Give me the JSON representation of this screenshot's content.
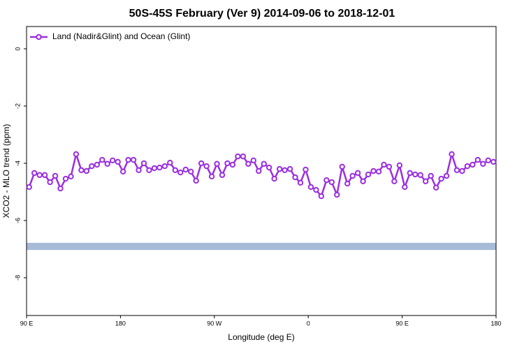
{
  "chart_data": {
    "type": "line",
    "title": "50S-45S February (Ver 9)   2014-09-06 to 2018-12-01",
    "x_label": "Longitude (deg E)",
    "y_label": "XCO2 - MLO trend (ppm)",
    "xlim": [
      90,
      540
    ],
    "xticks": [
      {
        "value": 90,
        "label": "90 E"
      },
      180,
      {
        "value": 270,
        "label": "90 W"
      },
      {
        "value": 360,
        "label": "0"
      },
      {
        "value": 450,
        "label": "90 E"
      },
      {
        "value": 540,
        "label": "180"
      }
    ],
    "ylim": [
      -9.32,
      0.78
    ],
    "yticks": [
      0,
      -2,
      -4,
      -6,
      -8
    ],
    "legend": "top-left",
    "band": {
      "values": [
        -6.78,
        -7.03
      ],
      "color": "#a7bbd8"
    },
    "x": [
      92.5,
      97.5,
      102.5,
      107.5,
      112.5,
      117.5,
      122.5,
      127.5,
      132.5,
      137.5,
      142.5,
      147.5,
      152.5,
      157.5,
      162.5,
      167.5,
      172.5,
      177.5,
      182.5,
      187.5,
      192.5,
      197.5,
      202.5,
      207.5,
      212.5,
      217.5,
      222.5,
      227.5,
      232.5,
      237.5,
      242.5,
      247.5,
      252.5,
      257.5,
      262.5,
      267.5,
      272.5,
      277.5,
      282.5,
      287.5,
      292.5,
      297.5,
      302.5,
      307.5,
      312.5,
      317.5,
      322.5,
      327.5,
      332.5,
      337.5,
      342.5,
      347.5,
      352.5,
      357.5,
      362.5,
      367.5,
      372.5,
      377.5,
      382.5,
      387.5,
      392.5,
      397.5,
      402.5,
      407.5,
      412.5,
      417.5,
      422.5,
      427.5,
      432.5,
      437.5,
      442.5,
      447.5,
      452.5,
      457.5,
      462.5,
      467.5,
      472.5,
      477.5,
      482.5,
      487.5,
      492.5,
      497.5,
      502.5,
      507.5,
      512.5,
      517.5,
      522.5,
      527.5,
      532.5,
      537.5
    ],
    "series": [
      {
        "name": "Land (Nadir&Glint) and Ocean (Glint)",
        "color": "#9b2fe0",
        "values": [
          -4.83,
          -4.34,
          -4.41,
          -4.41,
          -4.66,
          -4.44,
          -4.88,
          -4.54,
          -4.46,
          -3.68,
          -4.24,
          -4.27,
          -4.1,
          -4.05,
          -3.88,
          -4.02,
          -3.9,
          -3.95,
          -4.29,
          -3.88,
          -3.88,
          -4.24,
          -4.0,
          -4.24,
          -4.17,
          -4.15,
          -4.1,
          -3.98,
          -4.24,
          -4.32,
          -4.22,
          -4.29,
          -4.61,
          -4.0,
          -4.1,
          -4.46,
          -4.02,
          -4.41,
          -4.0,
          -4.05,
          -3.76,
          -3.76,
          -4.02,
          -3.9,
          -4.27,
          -4.02,
          -4.15,
          -4.54,
          -4.2,
          -4.24,
          -4.2,
          -4.49,
          -4.68,
          -4.22,
          -4.83,
          -4.93,
          -5.15,
          -4.59,
          -4.66,
          -5.1,
          -4.12,
          -4.71,
          -4.44,
          -4.34,
          -4.63,
          -4.39,
          -4.27,
          -4.29,
          -4.05,
          -4.12,
          -4.63,
          -4.07,
          -4.83,
          -4.34,
          -4.39,
          -4.41,
          -4.63,
          -4.44,
          -4.85,
          -4.54,
          -4.44,
          -3.68,
          -4.24,
          -4.27,
          -4.1,
          -4.05,
          -3.88,
          -4.02,
          -3.9,
          -3.95
        ]
      }
    ]
  }
}
